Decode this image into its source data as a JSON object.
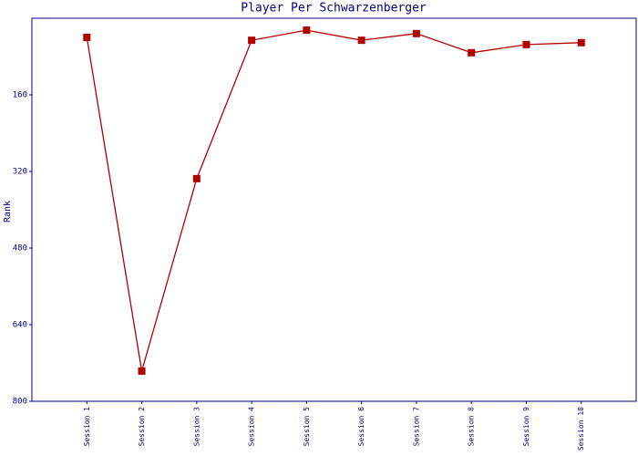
{
  "chart_data": {
    "type": "line",
    "title": "Player Per Schwarzenberger",
    "ylabel": "Rank",
    "categories": [
      "Session 1",
      "Session 2",
      "Session 3",
      "Session 4",
      "Session 5",
      "Session 6",
      "Session 7",
      "Session 8",
      "Session 9",
      "Session 10"
    ],
    "series": [
      {
        "name": "Rank",
        "color": "#b00000",
        "values": [
          40,
          737,
          335,
          46,
          25,
          46,
          32,
          72,
          55,
          51
        ]
      }
    ],
    "ylim": [
      800,
      0
    ],
    "yticks": [
      160,
      320,
      480,
      640,
      800
    ],
    "grid": false
  }
}
